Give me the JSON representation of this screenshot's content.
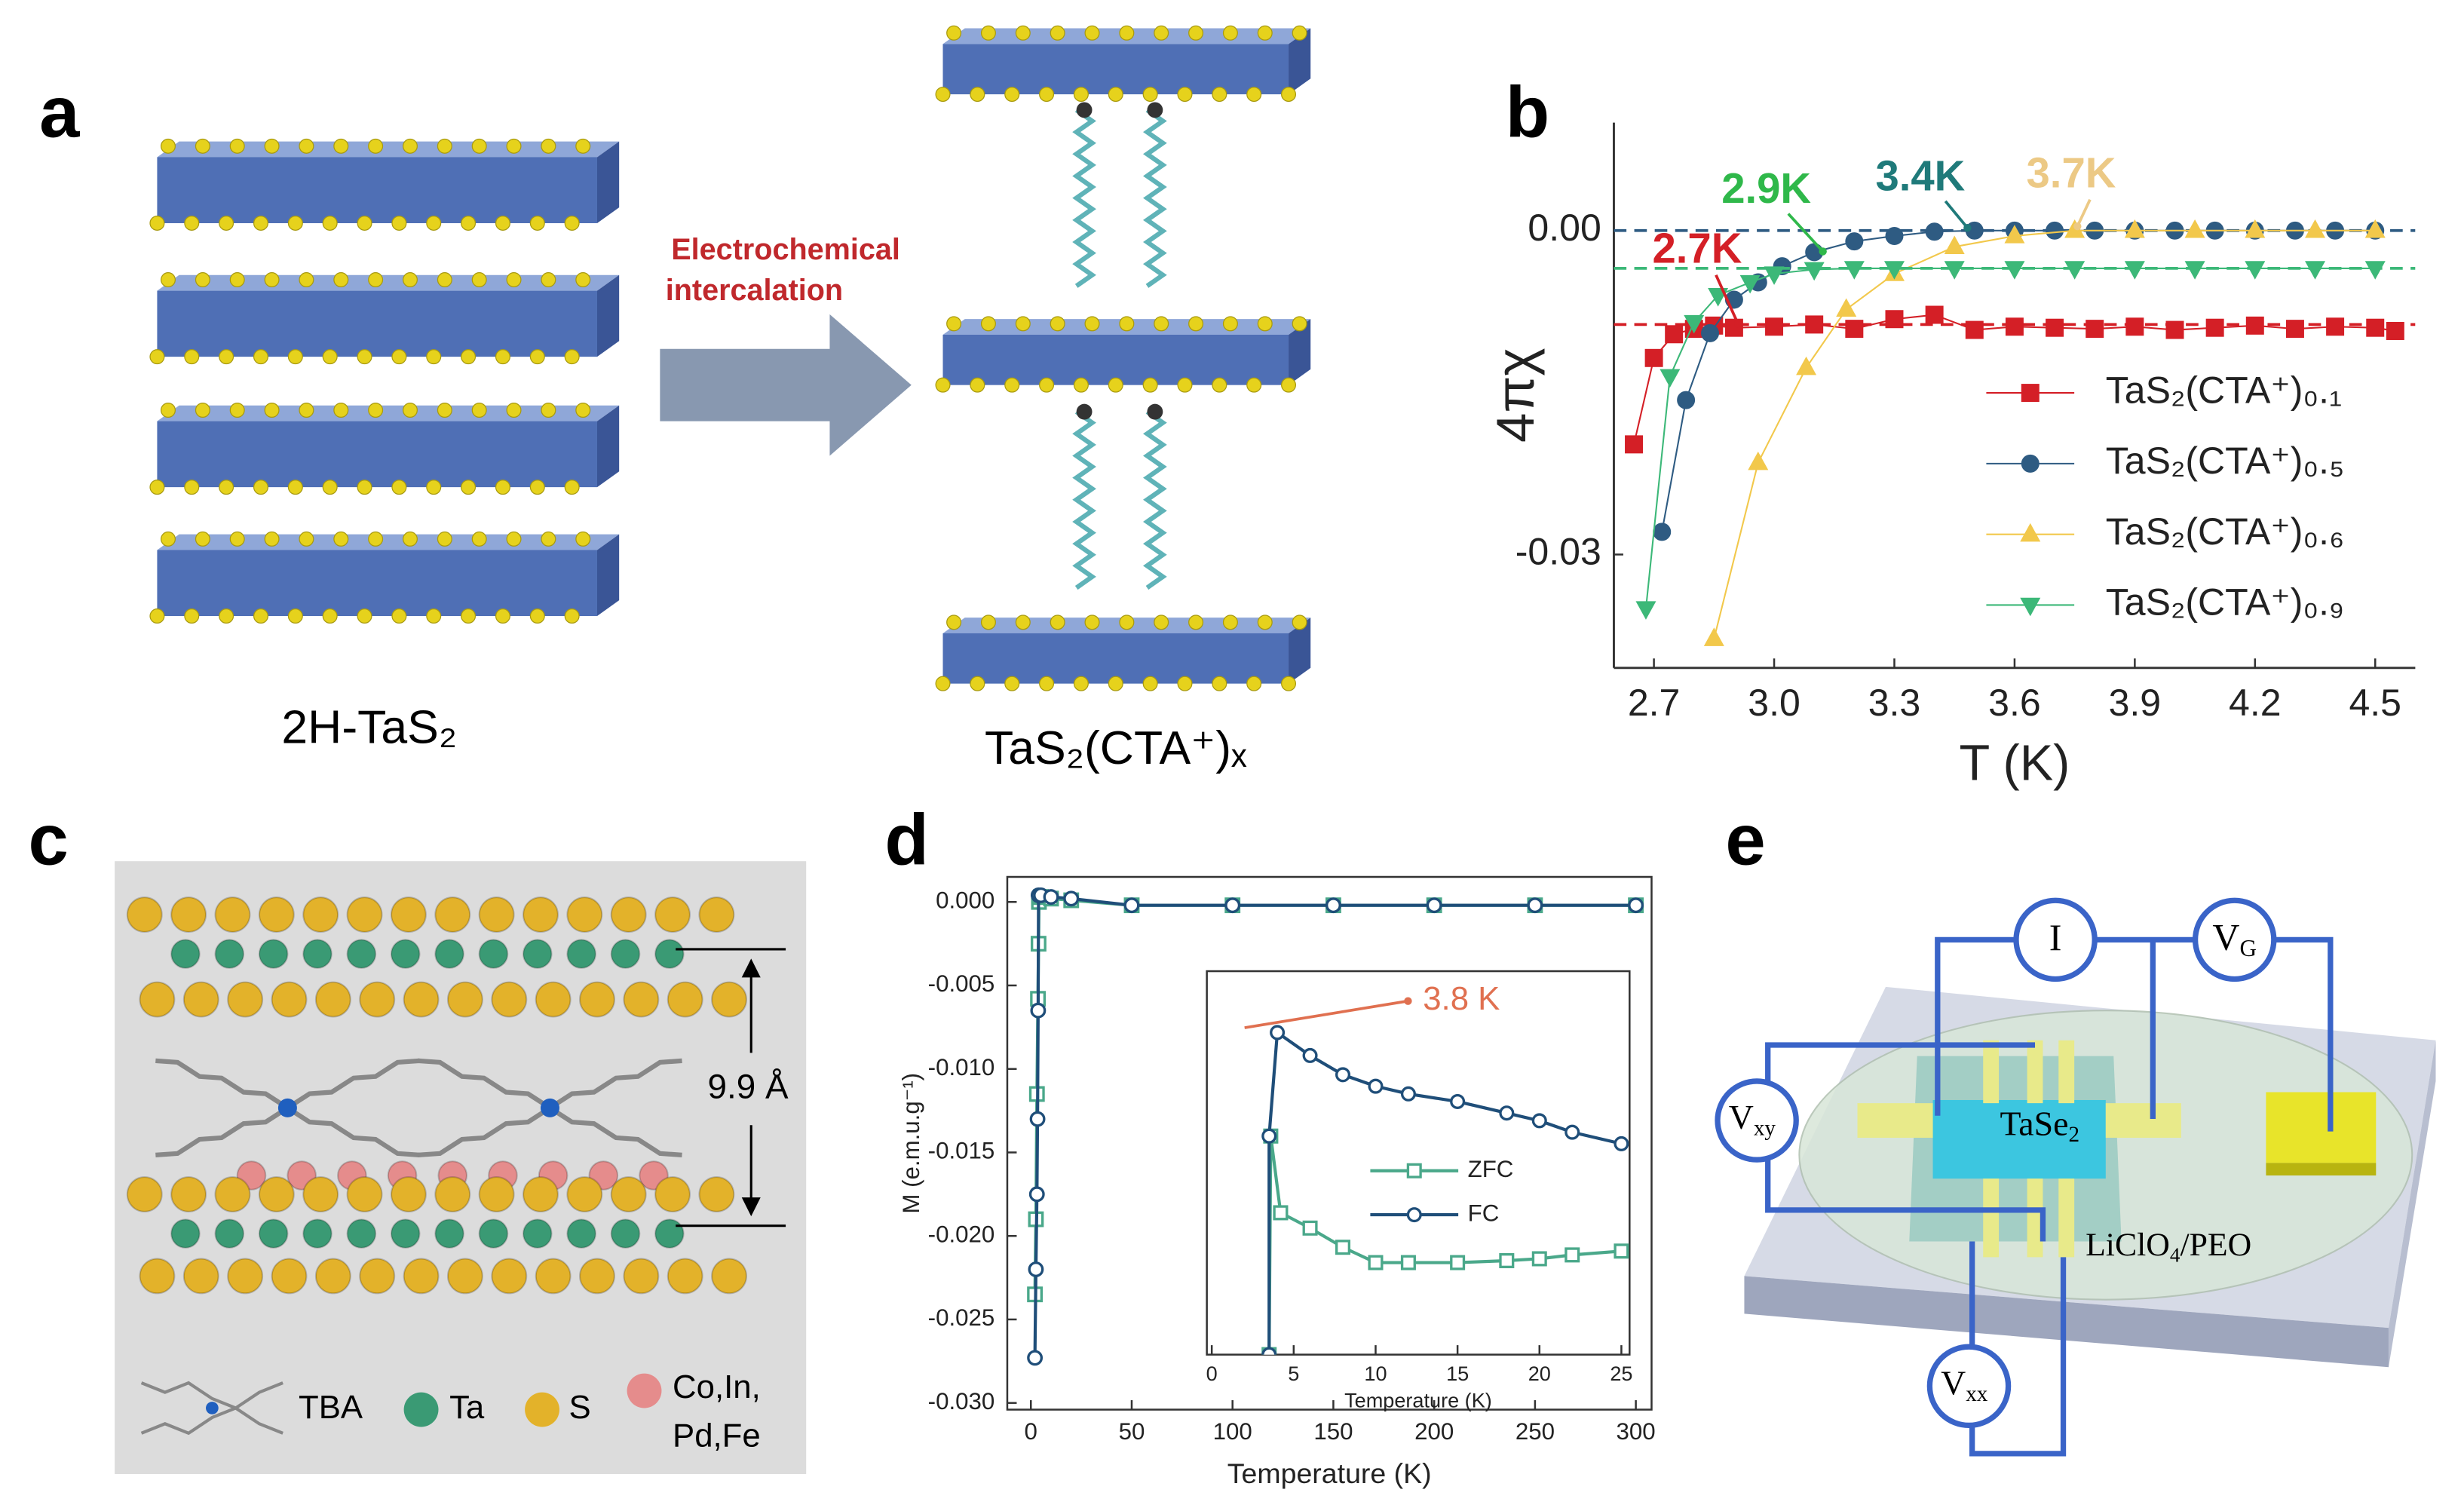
{
  "panel_labels": [
    "a",
    "b",
    "c",
    "d",
    "e"
  ],
  "panel_a": {
    "arrow_label": [
      "Electrochemical",
      "intercalation"
    ],
    "left_caption": "2H-TaS₂",
    "right_caption": "TaS₂(CTA⁺)ₓ"
  },
  "panel_c": {
    "spacing": "9.9 Å",
    "legend": [
      "TBA",
      "Ta",
      "S",
      "Co,In,",
      "Pd,Fe"
    ]
  },
  "panel_e": {
    "current": "I",
    "gate": {
      "main": "V",
      "sub": "G"
    },
    "hall": {
      "main": "V",
      "sub": "xy"
    },
    "longitudinal": {
      "main": "V",
      "sub": "xx"
    },
    "sample": {
      "main": "TaSe",
      "sub": "2"
    },
    "electrolyte": {
      "main": "LiClO",
      "sub": "4",
      "rest": "/PEO"
    }
  },
  "chart_data": [
    {
      "type": "line",
      "x_label": "T (K)",
      "y_label": "4πχ",
      "xlim": [
        2.6,
        4.6
      ],
      "xticks": [
        2.7,
        {
          "value": 3,
          "label": "3.0"
        },
        3.3,
        3.6,
        3.9,
        4.2,
        4.5
      ],
      "ylim": [
        -0.0405,
        0.01
      ],
      "yticks": [
        {
          "value": 0,
          "label": "0.00"
        },
        {
          "value": -0.03,
          "label": "-0.03"
        }
      ],
      "annotations": [
        {
          "text": "2.7K",
          "color": "#d41f26"
        },
        {
          "text": "2.9K",
          "color": "#2fb84a"
        },
        {
          "text": "3.4K",
          "color": "#1f7a7a"
        },
        {
          "text": "3.7K",
          "color": "#ecc985"
        }
      ],
      "series": [
        {
          "name": "TaS₂(CTA⁺)₀.₁",
          "color": "#d41f26",
          "marker": "square",
          "baseline": -0.0087,
          "x": [
            2.65,
            2.7,
            2.75,
            2.8,
            2.85,
            2.9,
            3.0,
            3.1,
            3.2,
            3.3,
            3.4,
            3.5,
            3.6,
            3.7,
            3.8,
            3.9,
            4.0,
            4.1,
            4.2,
            4.3,
            4.4,
            4.5,
            4.55
          ],
          "values": [
            -0.0198,
            -0.0118,
            -0.0096,
            -0.0091,
            -0.0088,
            -0.009,
            -0.0089,
            -0.0087,
            -0.0091,
            -0.0082,
            -0.0078,
            -0.0092,
            -0.0089,
            -0.009,
            -0.0091,
            -0.0089,
            -0.0092,
            -0.009,
            -0.0088,
            -0.0091,
            -0.0089,
            -0.009,
            -0.0093
          ]
        },
        {
          "name": "TaS₂(CTA⁺)₀.₅",
          "color": "#2e5b82",
          "marker": "circle",
          "baseline": 0,
          "x": [
            2.72,
            2.78,
            2.84,
            2.9,
            2.96,
            3.02,
            3.1,
            3.2,
            3.3,
            3.4,
            3.5,
            3.6,
            3.7,
            3.8,
            3.9,
            4.0,
            4.1,
            4.2,
            4.3,
            4.4,
            4.5
          ],
          "values": [
            -0.0279,
            -0.0157,
            -0.0095,
            -0.0064,
            -0.0048,
            -0.0033,
            -0.002,
            -0.001,
            -0.0005,
            -0.0001,
            0,
            0,
            0,
            0,
            0,
            0,
            0,
            0,
            0,
            0,
            0
          ]
        },
        {
          "name": "TaS₂(CTA⁺)₀.₆",
          "color": "#f2c84b",
          "marker": "triangle-up",
          "x": [
            2.85,
            2.96,
            3.08,
            3.18,
            3.3,
            3.45,
            3.6,
            3.75,
            3.9,
            4.05,
            4.2,
            4.35,
            4.5
          ],
          "values": [
            -0.0378,
            -0.0215,
            -0.0127,
            -0.0073,
            -0.004,
            -0.0015,
            -0.0005,
            0,
            0,
            0,
            0,
            0,
            0
          ]
        },
        {
          "name": "TaS₂(CTA⁺)₀.₉",
          "color": "#3cb878",
          "marker": "triangle-down",
          "baseline": -0.0035,
          "x": [
            2.68,
            2.74,
            2.8,
            2.86,
            2.94,
            3.0,
            3.1,
            3.2,
            3.3,
            3.45,
            3.6,
            3.75,
            3.9,
            4.05,
            4.2,
            4.35,
            4.5
          ],
          "values": [
            -0.035,
            -0.0135,
            -0.0085,
            -0.006,
            -0.0048,
            -0.004,
            -0.0036,
            -0.0035,
            -0.0035,
            -0.0035,
            -0.0035,
            -0.0035,
            -0.0035,
            -0.0035,
            -0.0035,
            -0.0035,
            -0.0035
          ]
        }
      ]
    },
    {
      "type": "line",
      "x_label": "Temperature (K)",
      "y_label": "M (e.m.u.g⁻¹)",
      "xlim": [
        -11.7,
        307.8
      ],
      "xticks": [
        0,
        50,
        100,
        150,
        200,
        250,
        300
      ],
      "ylim": [
        -0.0304,
        0.0015
      ],
      "yticks": [
        {
          "value": 0,
          "label": "0.000"
        },
        -0.005,
        {
          "value": -0.01,
          "label": "-0.010"
        },
        -0.015,
        {
          "value": -0.02,
          "label": "-0.020"
        },
        -0.025,
        {
          "value": -0.03,
          "label": "-0.030"
        }
      ],
      "series": [
        {
          "color": "#4aa88a",
          "marker": "square",
          "open": true,
          "x": [
            2,
            2.5,
            3,
            3.5,
            3.8,
            4,
            5,
            10,
            20,
            50,
            100,
            150,
            200,
            250,
            300
          ],
          "values": [
            -0.0235,
            -0.019,
            -0.0115,
            -0.0058,
            -0.0025,
            0,
            0.0003,
            0.0002,
            0.0001,
            -0.0002,
            -0.0002,
            -0.0002,
            -0.0002,
            -0.0002,
            -0.0002
          ]
        },
        {
          "color": "#1f4e79",
          "marker": "circle",
          "open": true,
          "x": [
            2,
            2.5,
            3,
            3.3,
            3.6,
            3.8,
            5,
            10,
            20,
            50,
            100,
            150,
            200,
            250,
            300
          ],
          "values": [
            -0.0273,
            -0.022,
            -0.0175,
            -0.013,
            -0.0065,
            0.0004,
            0.0004,
            0.0003,
            0.0002,
            -0.0002,
            -0.0002,
            -0.0002,
            -0.0002,
            -0.0002,
            -0.0002
          ]
        }
      ]
    },
    {
      "type": "line",
      "x_label": "Temperature (K)",
      "xlim": [
        -0.3,
        25.5
      ],
      "xticks": [
        0,
        5,
        10,
        15,
        20,
        25
      ],
      "ylim": [
        0,
        1
      ],
      "annotations": [
        {
          "text": "3.8 K",
          "color": "#e07050"
        }
      ],
      "series": [
        {
          "name": "ZFC",
          "color": "#4aa88a",
          "marker": "square",
          "open": true,
          "x": [
            3.5,
            3.6,
            4.2,
            6,
            8,
            10,
            12,
            15,
            18,
            20,
            22,
            25
          ],
          "values": [
            0,
            0.57,
            0.37,
            0.33,
            0.28,
            0.24,
            0.24,
            0.24,
            0.245,
            0.25,
            0.26,
            0.27
          ]
        },
        {
          "name": "FC",
          "color": "#1f4e79",
          "marker": "circle",
          "open": true,
          "x": [
            3.5,
            3.5,
            4,
            6,
            8,
            10,
            12,
            15,
            18,
            20,
            22,
            25
          ],
          "values": [
            0,
            0.57,
            0.84,
            0.78,
            0.73,
            0.7,
            0.68,
            0.66,
            0.63,
            0.61,
            0.58,
            0.55
          ]
        }
      ]
    }
  ]
}
